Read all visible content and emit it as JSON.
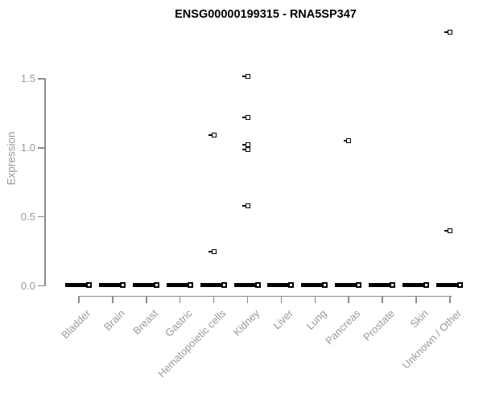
{
  "title": "ENSG00000199315 - RNA5SP347",
  "chart_data": {
    "type": "scatter",
    "title": "ENSG00000199315 - RNA5SP347",
    "xlabel": "",
    "ylabel": "Expression",
    "ylim": [
      0,
      1.9
    ],
    "ytick_values": [
      0,
      0.5,
      1.0,
      1.5
    ],
    "ytick_labels": [
      "0.0",
      "0.5",
      "1.0",
      "1.5"
    ],
    "grid": false,
    "legend": "none",
    "categories": [
      "Bladder",
      "Brain",
      "Breast",
      "Gastric",
      "Hematopoietic cells",
      "Kidney",
      "Liver",
      "Lung",
      "Pancreas",
      "Prostate",
      "Skin",
      "Unknown / Other"
    ],
    "zero_cluster": {
      "description": "dense cluster of overlapping square points at expression 0 for every category, rendered as a thick black dash",
      "value": 0.0,
      "applies_to_all_categories": true
    },
    "outliers": [
      {
        "category": "Hematopoietic cells",
        "values": [
          1.09,
          0.25
        ]
      },
      {
        "category": "Kidney",
        "values": [
          1.52,
          1.22,
          1.02,
          0.99,
          0.58
        ]
      },
      {
        "category": "Pancreas",
        "values": [
          1.05
        ]
      },
      {
        "category": "Unknown / Other",
        "values": [
          1.84,
          0.4
        ]
      }
    ],
    "colors": {
      "points": "#000000",
      "axis": "#8c8c8c",
      "labels": "#9a9a9a",
      "title": "#000000",
      "background": "#ffffff"
    }
  }
}
